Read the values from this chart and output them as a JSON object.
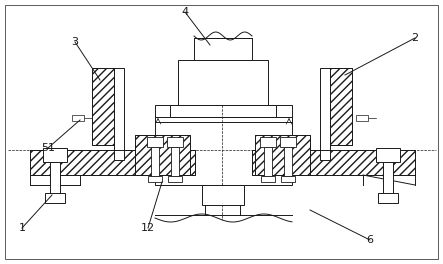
{
  "bg_color": "#ffffff",
  "line_color": "#1a1a1a",
  "figsize": [
    4.43,
    2.64
  ],
  "dpi": 100,
  "label_fs": 8.0,
  "lw": 0.7
}
